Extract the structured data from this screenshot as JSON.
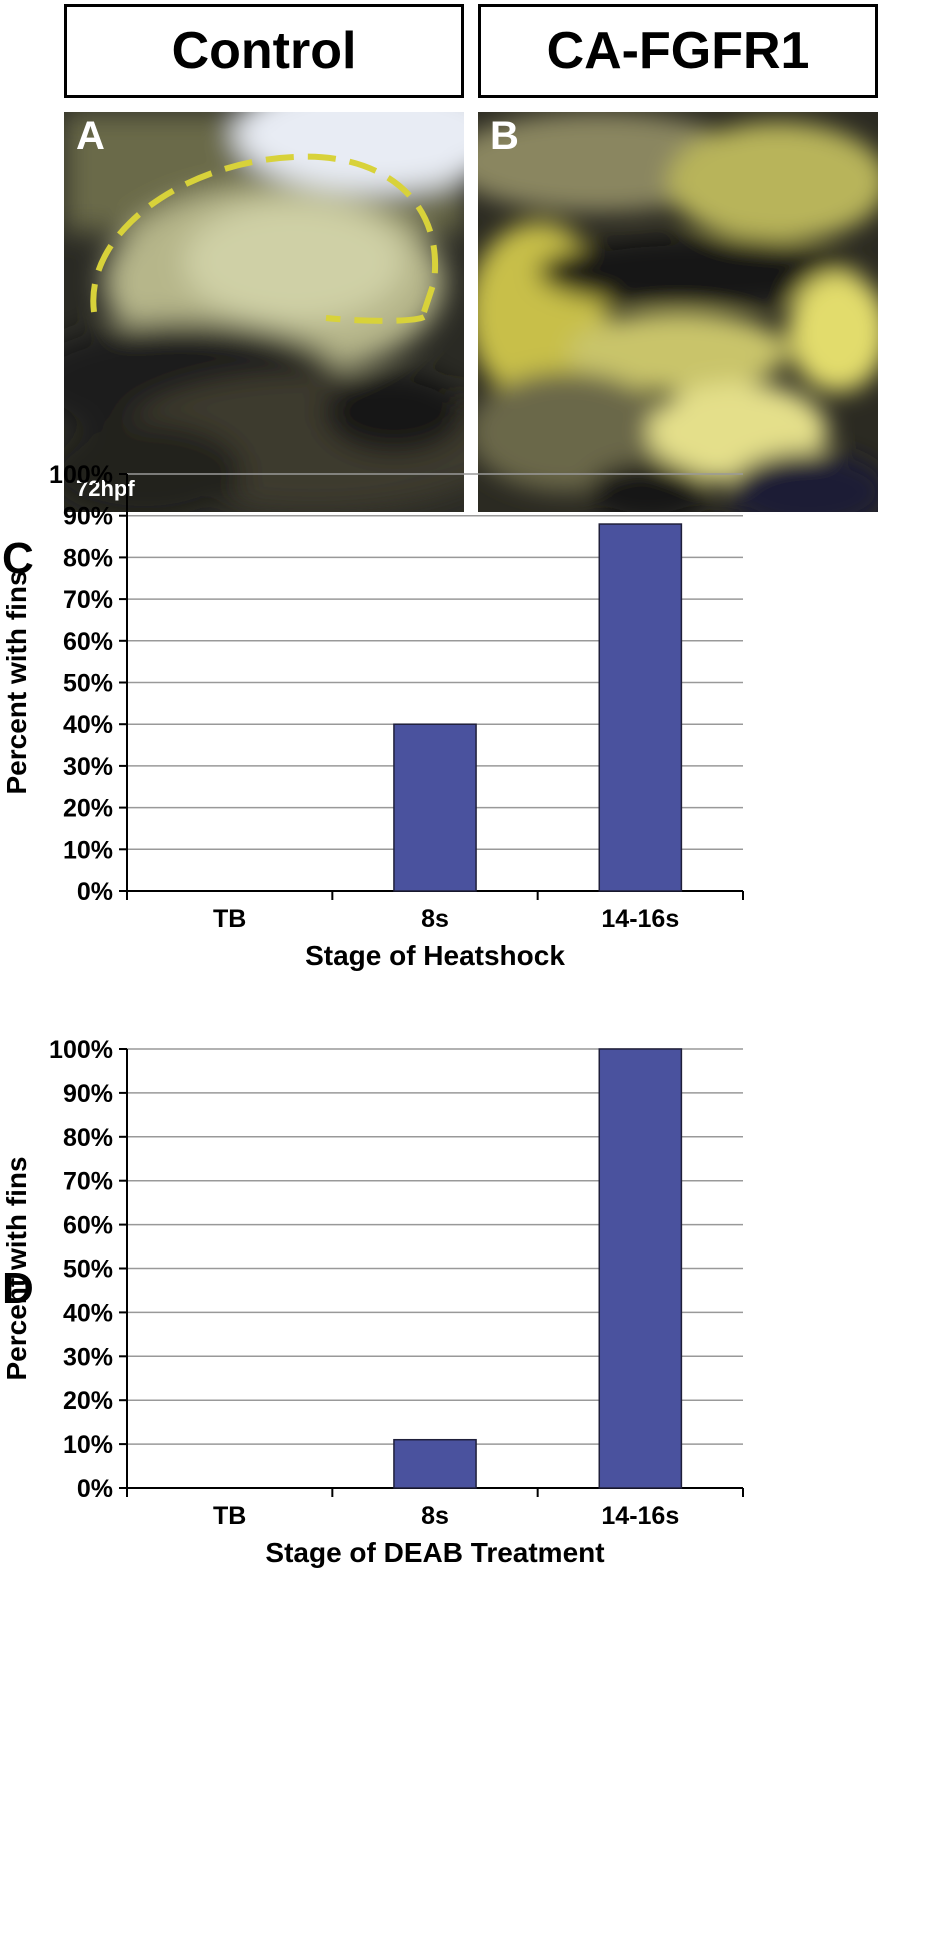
{
  "headers": {
    "left": "Control",
    "right": "CA-FGFR1"
  },
  "panels": {
    "A": {
      "letter": "A",
      "stage_label": "72hpf"
    },
    "B": {
      "letter": "B"
    },
    "C": {
      "letter": "C"
    },
    "D": {
      "letter": "D"
    }
  },
  "colors": {
    "bar": "#4a529e",
    "dash": "#d8d23a",
    "grid": "#999999"
  },
  "chart_data": [
    {
      "type": "bar",
      "panel": "C",
      "categories": [
        "TB",
        "8s",
        "14-16s"
      ],
      "values": [
        0,
        40,
        88
      ],
      "xlabel": "Stage of Heatshock",
      "ylabel": "Percent with fins",
      "ylim": [
        0,
        100
      ],
      "yticks": [
        "0%",
        "10%",
        "20%",
        "30%",
        "40%",
        "50%",
        "60%",
        "70%",
        "80%",
        "90%",
        "100%"
      ],
      "grid": true
    },
    {
      "type": "bar",
      "panel": "D",
      "categories": [
        "TB",
        "8s",
        "14-16s"
      ],
      "values": [
        0,
        11,
        100
      ],
      "xlabel": "Stage of DEAB Treatment",
      "ylabel": "Percent with fins",
      "ylim": [
        0,
        100
      ],
      "yticks": [
        "0%",
        "10%",
        "20%",
        "30%",
        "40%",
        "50%",
        "60%",
        "70%",
        "80%",
        "90%",
        "100%"
      ],
      "grid": true
    }
  ]
}
